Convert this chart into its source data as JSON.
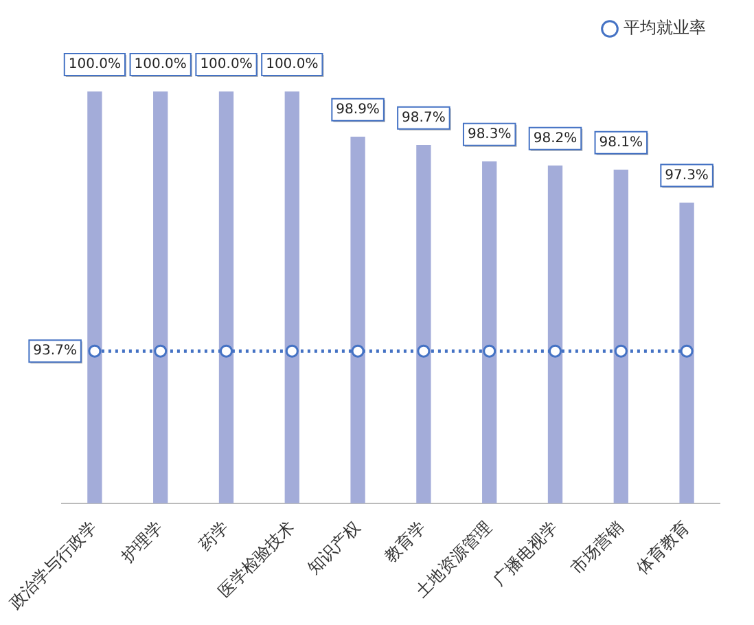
{
  "chart_data": {
    "type": "bar",
    "categories": [
      "政治学与行政学",
      "护理学",
      "药学",
      "医学检验技术",
      "知识产权",
      "教育学",
      "土地资源管理",
      "广播电视学",
      "市场营销",
      "体育教育"
    ],
    "series": [
      {
        "color": "#a3acd9",
        "values": [
          100.0,
          100.0,
          100.0,
          100.0,
          98.9,
          98.7,
          98.3,
          98.2,
          98.1,
          97.3
        ],
        "value_labels": [
          "100.0%",
          "100.0%",
          "100.0%",
          "100.0%",
          "98.9%",
          "98.7%",
          "98.3%",
          "98.2%",
          "98.1%",
          "97.3%"
        ]
      },
      {
        "type": "line",
        "name": "平均就业率",
        "color": "#4472c4",
        "values": [
          93.7,
          93.7,
          93.7,
          93.7,
          93.7,
          93.7,
          93.7,
          93.7,
          93.7,
          93.7
        ],
        "value_labels": [
          "93.7%",
          null,
          null,
          null,
          null,
          null,
          null,
          null,
          null,
          null
        ],
        "marker": "circle",
        "line_style": "dotted"
      }
    ],
    "ylim": [
      90,
      101
    ],
    "tick_labels": "x",
    "grid": false,
    "legend": "top right"
  }
}
